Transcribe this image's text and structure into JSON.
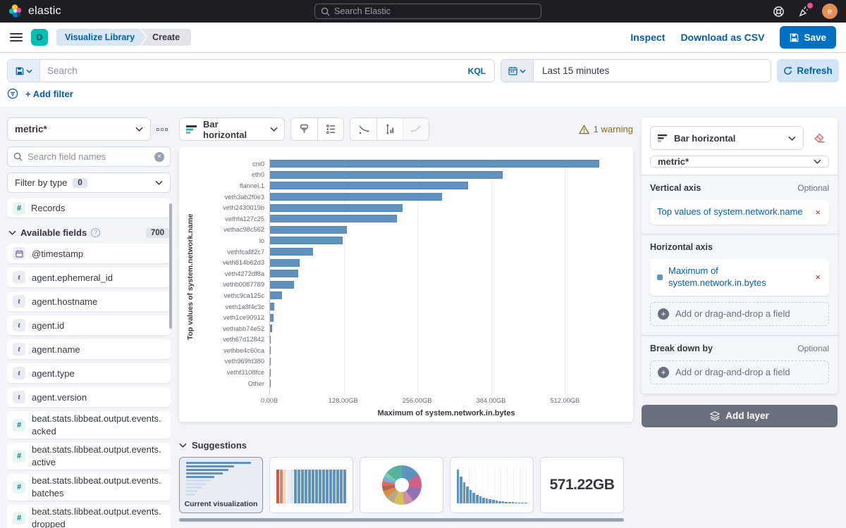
{
  "topbar": {
    "brand": "elastic",
    "search_placeholder": "Search Elastic",
    "avatar_initial": "e"
  },
  "navbar": {
    "app_initial": "D",
    "breadcrumbs": [
      "Visualize Library",
      "Create"
    ],
    "actions": {
      "inspect": "Inspect",
      "download": "Download as CSV",
      "save": "Save"
    }
  },
  "querybar": {
    "search_placeholder": "Search",
    "language": "KQL",
    "time_range": "Last 15 minutes",
    "refresh": "Refresh",
    "add_filter": "+ Add filter"
  },
  "sidebar": {
    "data_view": "metric*",
    "field_search_placeholder": "Search field names",
    "filter_by_type": {
      "label": "Filter by type",
      "count": "0"
    },
    "records_label": "Records",
    "available_fields": {
      "label": "Available fields",
      "count": "700"
    },
    "fields": [
      {
        "type": "date",
        "label": "@timestamp"
      },
      {
        "type": "keyword",
        "label": "agent.ephemeral_id"
      },
      {
        "type": "keyword",
        "label": "agent.hostname"
      },
      {
        "type": "keyword",
        "label": "agent.id"
      },
      {
        "type": "keyword",
        "label": "agent.name"
      },
      {
        "type": "keyword",
        "label": "agent.type"
      },
      {
        "type": "keyword",
        "label": "agent.version"
      },
      {
        "type": "number",
        "label": "beat.stats.libbeat.output.events.acked"
      },
      {
        "type": "number",
        "label": "beat.stats.libbeat.output.events.active"
      },
      {
        "type": "number",
        "label": "beat.stats.libbeat.output.events.batches"
      },
      {
        "type": "number",
        "label": "beat.stats.libbeat.output.events.dropped"
      }
    ]
  },
  "editor": {
    "chart_type": "Bar horizontal",
    "warning": "1 warning"
  },
  "chart_data": {
    "type": "bar",
    "orientation": "horizontal",
    "categories": [
      "cni0",
      "eth0",
      "flannel.1",
      "veth3ab2f0e3",
      "veth2430019b",
      "vethfa127c25",
      "vethac98c562",
      "lo",
      "vethfca8f2c7",
      "veth814b62d3",
      "veth4272df8a",
      "vethb0087789",
      "vethc9ca125c",
      "veth1a8f4c3c",
      "veth1ce90912",
      "vethabb74e52",
      "veth67d12842",
      "vethbe4c60ca",
      "veth969fd380",
      "vethf3108fce",
      "Other"
    ],
    "values": [
      571.22,
      404,
      344,
      298,
      230,
      220,
      133,
      126,
      75,
      51,
      49,
      41,
      21,
      7,
      6,
      3.5,
      1.8,
      1.2,
      1.2,
      1.2,
      0.4
    ],
    "unit": "GB",
    "xlabel": "Maximum of system.network.in.bytes",
    "ylabel": "Top values of system.network.name",
    "x_ticks": [
      "0.00B",
      "128.00GB",
      "256.00GB",
      "384.00GB",
      "512.00GB"
    ],
    "x_tick_values": [
      0,
      128,
      256,
      384,
      512
    ],
    "xlim": [
      0,
      613
    ],
    "bar_color": "#6092c0",
    "grid": "dotted-vertical",
    "legend": "none"
  },
  "suggestions": {
    "label": "Suggestions",
    "current_label": "Current visualization",
    "metric_value": "571.22GB"
  },
  "config_panel": {
    "chart_type": "Bar horizontal",
    "data_view": "metric*",
    "vertical_axis": {
      "label": "Vertical axis",
      "optional": "Optional",
      "pill": "Top values of system.network.name"
    },
    "horizontal_axis": {
      "label": "Horizontal axis",
      "pill": "Maximum of system.network.in.bytes",
      "add_field": "Add or drag-and-drop a field"
    },
    "break_down": {
      "label": "Break down by",
      "optional": "Optional",
      "add_field": "Add or drag-and-drop a field"
    },
    "add_layer": "Add layer"
  }
}
